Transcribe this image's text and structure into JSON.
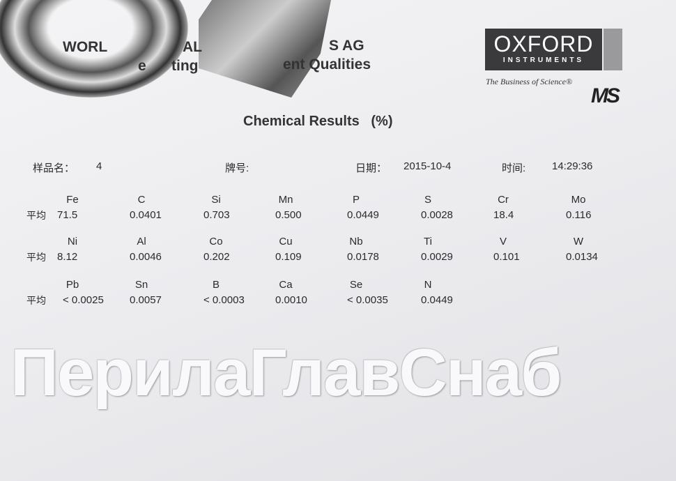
{
  "header": {
    "line1_fragment_left": "WORL",
    "line1_fragment_mid": "AL",
    "line1_fragment_right": "S AG",
    "line2_fragment_left": "e",
    "line2_fragment_mid": "ting",
    "line2_fragment_right": "ent Qualities"
  },
  "logo": {
    "name": "OXFORD",
    "sub": "INSTRUMENTS",
    "tagline": "The Business of Science®",
    "mark": "MS"
  },
  "title": "Chemical Results   (%)",
  "meta": {
    "sample_label": "样品名：",
    "sample_value": "4",
    "grade_label": "牌号:",
    "date_label": "日期：",
    "date_value": "2015-10-4",
    "time_label": "时间:",
    "time_value": "14:29:36"
  },
  "avg_label": "平均",
  "rows": [
    {
      "elements": [
        "Fe",
        "C",
        "Si",
        "Mn",
        "P",
        "S",
        "Cr",
        "Mo"
      ],
      "values": [
        "71.5",
        "0.0401",
        "0.703",
        "0.500",
        "0.0449",
        "0.0028",
        "18.4",
        "0.116"
      ]
    },
    {
      "elements": [
        "Ni",
        "Al",
        "Co",
        "Cu",
        "Nb",
        "Ti",
        "V",
        "W"
      ],
      "values": [
        "8.12",
        "0.0046",
        "0.202",
        "0.109",
        "0.0178",
        "0.0029",
        "0.101",
        "0.0134"
      ]
    },
    {
      "elements": [
        "Pb",
        "Sn",
        "B",
        "Ca",
        "Se",
        "N"
      ],
      "values": [
        "< 0.0025",
        "0.0057",
        "< 0.0003",
        "0.0010",
        "< 0.0035",
        "0.0449"
      ]
    }
  ],
  "watermark": "ПерилаГлавСнаб"
}
